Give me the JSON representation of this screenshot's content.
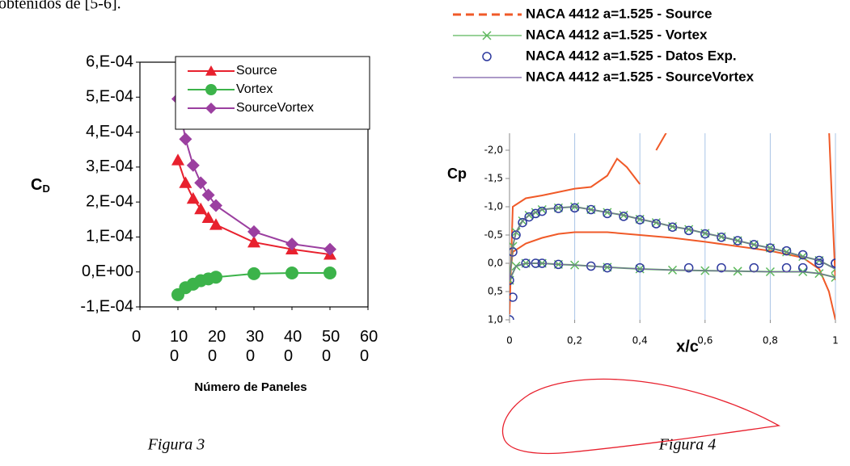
{
  "header_text": "obtenidos de [5-6].",
  "chart_data": [
    {
      "type": "line",
      "x_label": "Número de Paneles",
      "y_label": {
        "main": "C",
        "sub": "D"
      },
      "xlim": [
        0,
        600
      ],
      "xticks": [
        0,
        100,
        200,
        300,
        400,
        500,
        600
      ],
      "ylim": [
        -0.0001,
        0.0006
      ],
      "yticks": [
        {
          "value": -0.0001,
          "label": "-1,E-04"
        },
        {
          "value": 0,
          "label": "0,E+00"
        },
        {
          "value": 0.0001,
          "label": "1,E-04"
        },
        {
          "value": 0.0002,
          "label": "2,E-04"
        },
        {
          "value": 0.0003,
          "label": "3,E-04"
        },
        {
          "value": 0.0004,
          "label": "4,E-04"
        },
        {
          "value": 0.0005,
          "label": "5,E-04"
        },
        {
          "value": 0.0006,
          "label": "6,E-04"
        }
      ],
      "legend": "upper right",
      "series": [
        {
          "name": "Source",
          "color": "#e8212e",
          "marker": "triangle",
          "line": true,
          "x": [
            100,
            120,
            140,
            160,
            180,
            200,
            300,
            400,
            500
          ],
          "values": [
            0.00032,
            0.000255,
            0.00021,
            0.00018,
            0.000155,
            0.000135,
            8.5e-05,
            6.5e-05,
            5e-05
          ]
        },
        {
          "name": "Vortex",
          "color": "#3cb34a",
          "marker": "circle",
          "line": true,
          "x": [
            100,
            120,
            140,
            160,
            180,
            200,
            300,
            400,
            500
          ],
          "values": [
            -6.5e-05,
            -4.5e-05,
            -3.5e-05,
            -2.5e-05,
            -2e-05,
            -1.5e-05,
            -5e-06,
            -3e-06,
            -3e-06
          ]
        },
        {
          "name": "SourceVortex",
          "color": "#9b3fa0",
          "marker": "diamond",
          "line": true,
          "x": [
            100,
            120,
            140,
            160,
            180,
            200,
            300,
            400,
            500
          ],
          "values": [
            0.000495,
            0.00038,
            0.000305,
            0.000255,
            0.00022,
            0.00019,
            0.000115,
            8e-05,
            6.5e-05
          ]
        }
      ]
    },
    {
      "type": "line",
      "x_label": "x/c",
      "y_label": "Cp",
      "xlim": [
        0,
        1
      ],
      "xticks": [
        0,
        {
          "value": 0.2,
          "label": "0,2"
        },
        {
          "value": 0.4,
          "label": "0,4"
        },
        {
          "value": 0.6,
          "label": "0,6"
        },
        {
          "value": 0.8,
          "label": "0,8"
        },
        1
      ],
      "ylim": [
        1.0,
        -2.3
      ],
      "yticks": [
        {
          "value": -2.0,
          "label": "-2,0"
        },
        {
          "value": -1.5,
          "label": "-1,5"
        },
        {
          "value": -1.0,
          "label": "-1,0"
        },
        {
          "value": -0.5,
          "label": "-0,5"
        },
        {
          "value": 0.0,
          "label": "0,0"
        },
        {
          "value": 0.5,
          "label": "0,5"
        },
        {
          "value": 1.0,
          "label": "1,0"
        }
      ],
      "grid": "x",
      "legend": "top",
      "series": [
        {
          "name": "NACA 4412 a=1.525 - Source",
          "color": "#f05a28",
          "marker": "none",
          "line": true,
          "dashed": true,
          "x": [
            0,
            0.01,
            0.05,
            0.1,
            0.15,
            0.2,
            0.3,
            0.4,
            0.5,
            0.6,
            0.7,
            0.8,
            0.9,
            0.95,
            0.98,
            1.0,
            0.5,
            0,
            0.01,
            0.05,
            0.1,
            0.2,
            0.25,
            0.3,
            0.33,
            0.36,
            0.4,
            0.5,
            0.45,
            0.49,
            0.5,
            0.98,
            0.99,
            1.0
          ],
          "values": [
            0.3,
            -0.2,
            -0.35,
            -0.45,
            -0.52,
            -0.55,
            -0.55,
            -0.5,
            -0.45,
            -0.38,
            -0.3,
            -0.22,
            -0.1,
            0.1,
            0.5,
            1.0,
            null,
            0.9,
            -1.0,
            -1.15,
            -1.2,
            -1.32,
            -1.35,
            -1.55,
            -1.85,
            -1.7,
            -1.4,
            null,
            -2.0,
            -2.4,
            null,
            -2.4,
            -1.0,
            0.3
          ]
        },
        {
          "name": "NACA 4412 a=1.525 - Vortex",
          "color": "#5cb85c",
          "marker": "x",
          "line": true,
          "x": [
            0,
            0.01,
            0.02,
            0.04,
            0.06,
            0.08,
            0.1,
            0.15,
            0.2,
            0.25,
            0.3,
            0.35,
            0.4,
            0.45,
            0.5,
            0.55,
            0.6,
            0.65,
            0.7,
            0.75,
            0.8,
            0.85,
            0.9,
            0.95,
            1.0,
            0.5,
            0,
            0.02,
            0.05,
            0.1,
            0.15,
            0.2,
            0.3,
            0.4,
            0.5,
            0.6,
            0.7,
            0.8,
            0.9,
            0.95,
            1.0
          ],
          "values": [
            0.3,
            -0.3,
            -0.55,
            -0.75,
            -0.85,
            -0.9,
            -0.95,
            -0.98,
            -1.0,
            -0.95,
            -0.9,
            -0.85,
            -0.78,
            -0.72,
            -0.65,
            -0.6,
            -0.53,
            -0.47,
            -0.4,
            -0.33,
            -0.27,
            -0.2,
            -0.12,
            -0.05,
            0.1,
            null,
            0.3,
            0.05,
            0.0,
            0.0,
            0.02,
            0.03,
            0.07,
            0.1,
            0.12,
            0.13,
            0.14,
            0.15,
            0.15,
            0.18,
            0.25
          ]
        },
        {
          "name": "NACA 4412 a=1.525 - Datos Exp.",
          "color": "#2e3a9e",
          "marker": "open-circle",
          "line": false,
          "x": [
            0,
            0.01,
            0.02,
            0.04,
            0.06,
            0.08,
            0.1,
            0.15,
            0.2,
            0.25,
            0.3,
            0.35,
            0.4,
            0.45,
            0.5,
            0.55,
            0.6,
            0.65,
            0.7,
            0.75,
            0.8,
            0.85,
            0.9,
            0.95,
            1.0,
            0,
            0.01,
            0.05,
            0.08,
            0.1,
            0.15,
            0.25,
            0.3,
            0.4,
            0.55,
            0.65,
            0.75,
            0.85,
            0.9,
            0.95,
            1.0
          ],
          "values": [
            0.3,
            -0.2,
            -0.5,
            -0.72,
            -0.82,
            -0.88,
            -0.92,
            -0.97,
            -0.98,
            -0.95,
            -0.88,
            -0.83,
            -0.77,
            -0.7,
            -0.64,
            -0.58,
            -0.52,
            -0.46,
            -0.4,
            -0.33,
            -0.27,
            -0.22,
            -0.15,
            -0.05,
            0.0,
            1.0,
            0.6,
            0.0,
            0.0,
            0.0,
            0.02,
            0.05,
            0.08,
            0.08,
            0.08,
            0.08,
            0.08,
            0.08,
            0.08,
            0.0,
            0.0
          ]
        },
        {
          "name": "NACA 4412 a=1.525 - SourceVortex",
          "color": "#7b5ea7",
          "marker": "none",
          "line": true,
          "x": [
            0,
            0.01,
            0.02,
            0.04,
            0.06,
            0.08,
            0.1,
            0.15,
            0.2,
            0.25,
            0.3,
            0.35,
            0.4,
            0.45,
            0.5,
            0.55,
            0.6,
            0.65,
            0.7,
            0.75,
            0.8,
            0.85,
            0.9,
            0.95,
            1.0,
            0.5,
            0,
            0.02,
            0.05,
            0.1,
            0.15,
            0.2,
            0.3,
            0.4,
            0.5,
            0.6,
            0.7,
            0.8,
            0.9,
            0.95,
            1.0
          ],
          "values": [
            0.3,
            -0.3,
            -0.55,
            -0.75,
            -0.85,
            -0.9,
            -0.95,
            -0.98,
            -1.0,
            -0.95,
            -0.9,
            -0.85,
            -0.78,
            -0.72,
            -0.65,
            -0.6,
            -0.53,
            -0.47,
            -0.4,
            -0.33,
            -0.27,
            -0.2,
            -0.12,
            -0.05,
            0.1,
            null,
            0.3,
            0.05,
            0.0,
            0.0,
            0.02,
            0.03,
            0.07,
            0.1,
            0.12,
            0.13,
            0.14,
            0.15,
            0.15,
            0.18,
            0.25
          ]
        }
      ]
    }
  ],
  "captions": [
    "Figura 3",
    "Figura 4"
  ]
}
